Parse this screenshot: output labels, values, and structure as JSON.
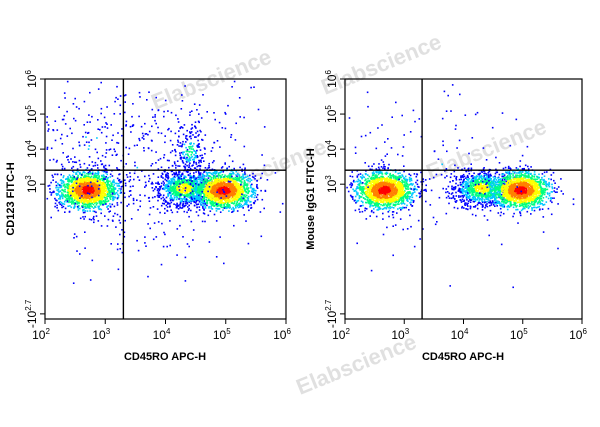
{
  "chart_data": [
    {
      "type": "scatter",
      "panel": "left",
      "xlabel": "CD45RO APC-H",
      "ylabel": "CD123 FITC-H",
      "x_scale": "biexponential",
      "y_scale": "biexponential",
      "x_ticks": [
        {
          "base": "10",
          "exp": "2",
          "value": 100
        },
        {
          "base": "10",
          "exp": "3",
          "value": 1000
        },
        {
          "base": "10",
          "exp": "4",
          "value": 10000
        },
        {
          "base": "10",
          "exp": "5",
          "value": 100000
        },
        {
          "base": "10",
          "exp": "6",
          "value": 1000000
        }
      ],
      "y_ticks": [
        {
          "base": "-10",
          "exp": "2.7",
          "value": -500
        },
        {
          "base": "10",
          "exp": "3",
          "value": 1000
        },
        {
          "base": "10",
          "exp": "4",
          "value": 10000
        },
        {
          "base": "10",
          "exp": "5",
          "value": 100000
        },
        {
          "base": "10",
          "exp": "6",
          "value": 1000000
        }
      ],
      "gate": {
        "x": 2000,
        "y": 2500
      },
      "populations": [
        {
          "x": 500,
          "y": 700,
          "count": 1700,
          "density": 1.0
        },
        {
          "x": 20000,
          "y": 800,
          "count": 900,
          "density": 0.7
        },
        {
          "x": 90000,
          "y": 700,
          "count": 1600,
          "density": 1.0
        },
        {
          "x": 25000,
          "y": 9000,
          "count": 160,
          "density": 0.5
        },
        {
          "x": 400,
          "y": 16000,
          "count": 55,
          "density": 0.3
        },
        {
          "x": 4000,
          "y": 3500,
          "count": 600,
          "density": 0.2
        }
      ]
    },
    {
      "type": "scatter",
      "panel": "right",
      "xlabel": "CD45RO APC-H",
      "ylabel": "Mouse IgG1 FITC-H",
      "x_scale": "biexponential",
      "y_scale": "biexponential",
      "x_ticks": [
        {
          "base": "10",
          "exp": "2",
          "value": 100
        },
        {
          "base": "10",
          "exp": "3",
          "value": 1000
        },
        {
          "base": "10",
          "exp": "4",
          "value": 10000
        },
        {
          "base": "10",
          "exp": "5",
          "value": 100000
        },
        {
          "base": "10",
          "exp": "6",
          "value": 1000000
        }
      ],
      "y_ticks": [
        {
          "base": "-10",
          "exp": "2.7",
          "value": -500
        },
        {
          "base": "10",
          "exp": "3",
          "value": 1000
        },
        {
          "base": "10",
          "exp": "4",
          "value": 10000
        },
        {
          "base": "10",
          "exp": "5",
          "value": 100000
        },
        {
          "base": "10",
          "exp": "6",
          "value": 1000000
        }
      ],
      "gate": {
        "x": 2000,
        "y": 2500
      },
      "populations": [
        {
          "x": 450,
          "y": 700,
          "count": 1600,
          "density": 1.0
        },
        {
          "x": 20000,
          "y": 800,
          "count": 900,
          "density": 0.7
        },
        {
          "x": 90000,
          "y": 700,
          "count": 1600,
          "density": 1.0
        },
        {
          "x": 4000,
          "y": 3500,
          "count": 140,
          "density": 0.2
        }
      ]
    }
  ],
  "watermark": "Elabscience",
  "colors": {
    "density": [
      "#0000ff",
      "#00c8ff",
      "#00ff80",
      "#ffff00",
      "#ff8000",
      "#ff0000"
    ],
    "watermark": "#c8c8c8"
  }
}
